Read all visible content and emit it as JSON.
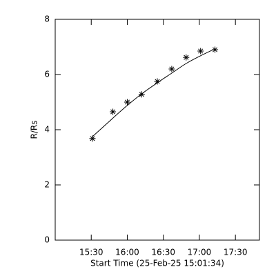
{
  "chart_data": {
    "type": "line",
    "x_label": "Start Time (25-Feb-25 15:01:34)",
    "y_label": "R/Rs",
    "x": [
      "15:31",
      "15:48",
      "16:00",
      "16:12",
      "16:25",
      "16:37",
      "16:49",
      "17:01",
      "17:13"
    ],
    "series": [
      {
        "style": "markers",
        "marker": "asterisk",
        "color": "#000000",
        "values": [
          3.68,
          4.65,
          5.0,
          5.28,
          5.75,
          6.2,
          6.62,
          6.85,
          6.9
        ]
      },
      {
        "style": "line",
        "color": "#000000",
        "values": [
          3.75,
          4.42,
          4.88,
          5.3,
          5.7,
          6.05,
          6.4,
          6.68,
          6.93
        ]
      }
    ],
    "xlim": [
      "15:00",
      "17:50"
    ],
    "xticks": [
      "15:30",
      "16:00",
      "16:30",
      "17:00",
      "17:30"
    ],
    "ylim": [
      0,
      8
    ],
    "yticks": [
      0,
      2,
      4,
      6,
      8
    ],
    "grid": false
  }
}
